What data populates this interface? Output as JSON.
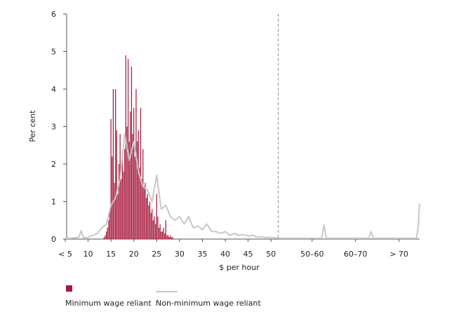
{
  "chart_data": {
    "type": "bar",
    "y_label": "Per cent",
    "x_label": "$ per hour",
    "xlim": [
      5,
      82.5
    ],
    "ylim": [
      0,
      6
    ],
    "yticks": [
      0,
      1,
      2,
      3,
      4,
      5,
      6
    ],
    "xticks": [
      {
        "value": 5,
        "label": "< 5"
      },
      10,
      15,
      20,
      25,
      30,
      35,
      40,
      45,
      50,
      {
        "value": 59,
        "label": "50–60"
      },
      {
        "value": 68.5,
        "label": "60–70"
      },
      {
        "value": 78,
        "label": "> 70"
      }
    ],
    "reference_line_x": 51.6,
    "series": [
      {
        "name": "Minimum wage reliant",
        "type": "bar",
        "color": "#a6193c",
        "x": [
          13.5,
          13.75,
          14,
          14.25,
          14.5,
          14.75,
          15,
          15.25,
          15.5,
          15.75,
          16,
          16.25,
          16.5,
          16.75,
          17,
          17.25,
          17.5,
          17.75,
          18,
          18.25,
          18.5,
          18.75,
          19,
          19.25,
          19.5,
          19.75,
          20,
          20.25,
          20.5,
          20.75,
          21,
          21.25,
          21.5,
          21.75,
          22,
          22.25,
          22.5,
          22.75,
          23,
          23.25,
          23.5,
          23.75,
          24,
          24.25,
          24.5,
          24.75,
          25,
          25.25,
          25.5,
          25.75,
          26,
          26.25,
          26.5,
          26.75,
          27,
          27.25,
          27.5,
          27.75,
          28,
          28.25,
          28.5
        ],
        "values": [
          0.05,
          0.1,
          0.2,
          0.3,
          0.5,
          0.8,
          3.2,
          2.2,
          4.0,
          1.5,
          4.0,
          2.9,
          1.2,
          2.0,
          2.8,
          1.6,
          2.3,
          1.8,
          2.4,
          4.9,
          3.0,
          4.8,
          2.6,
          3.4,
          4.6,
          2.8,
          3.5,
          2.2,
          4.0,
          2.6,
          2.9,
          1.9,
          3.5,
          1.6,
          2.4,
          1.4,
          1.5,
          1.1,
          1.2,
          0.9,
          1.0,
          0.7,
          0.8,
          0.5,
          0.6,
          0.4,
          1.2,
          0.6,
          0.3,
          0.4,
          0.2,
          0.2,
          0.3,
          0.15,
          0.5,
          0.1,
          0.1,
          0.05,
          0.1,
          0.05,
          0.05
        ]
      },
      {
        "name": "Non-minimum wage reliant",
        "type": "line",
        "color": "#c8c8c8",
        "x": [
          5,
          6,
          7,
          8,
          8.5,
          9,
          10,
          11,
          12,
          13,
          14,
          15,
          16,
          17,
          18,
          19,
          20,
          21,
          22,
          23,
          24,
          25,
          26,
          27,
          28,
          29,
          30,
          31,
          32,
          33,
          34,
          35,
          36,
          37,
          38,
          39,
          40,
          41,
          42,
          43,
          44,
          45,
          46,
          47,
          48,
          49,
          50,
          51,
          52,
          61.1,
          61.6,
          62.1,
          71.4,
          71.9,
          72.4,
          81.8,
          82.2,
          82.5
        ],
        "values": [
          0.02,
          0.02,
          0.03,
          0.05,
          0.22,
          0.03,
          0.05,
          0.1,
          0.15,
          0.3,
          0.4,
          0.9,
          1.1,
          1.6,
          2.8,
          2.1,
          2.6,
          1.8,
          1.4,
          1.3,
          1.0,
          1.7,
          0.8,
          0.9,
          0.6,
          0.5,
          0.6,
          0.4,
          0.6,
          0.3,
          0.35,
          0.25,
          0.4,
          0.2,
          0.2,
          0.15,
          0.2,
          0.1,
          0.15,
          0.1,
          0.12,
          0.08,
          0.1,
          0.05,
          0.06,
          0.04,
          0.05,
          0.03,
          0.02,
          0.02,
          0.38,
          0.02,
          0.02,
          0.2,
          0.02,
          0.02,
          0.3,
          0.95
        ]
      }
    ]
  }
}
